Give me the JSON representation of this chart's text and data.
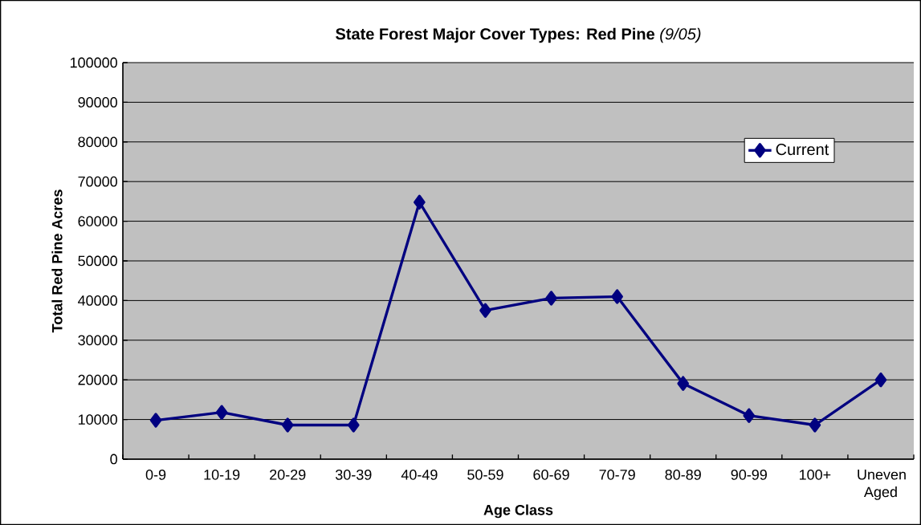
{
  "chart_data": {
    "type": "line",
    "title": "**State Forest Major Cover Types: Red Pine** *(9/05)*",
    "xlabel": "Age Class",
    "ylabel": "Total Red Pine Acres",
    "categories": [
      "0-9",
      "10-19",
      "20-29",
      "30-39",
      "40-49",
      "50-59",
      "60-69",
      "70-79",
      "80-89",
      "90-99",
      "100+",
      "Uneven Aged"
    ],
    "series": [
      {
        "name": "Current",
        "color": "#000080",
        "values": [
          9800,
          11800,
          8600,
          8600,
          64800,
          37500,
          40600,
          41000,
          19100,
          11000,
          8600,
          20000
        ]
      }
    ],
    "ylim": [
      0,
      100000
    ],
    "yticks": [
      0,
      10000,
      20000,
      30000,
      40000,
      50000,
      60000,
      70000,
      80000,
      90000,
      100000
    ],
    "grid": "y",
    "legend": "top right",
    "marker": "diamond",
    "line_style": "solid"
  }
}
